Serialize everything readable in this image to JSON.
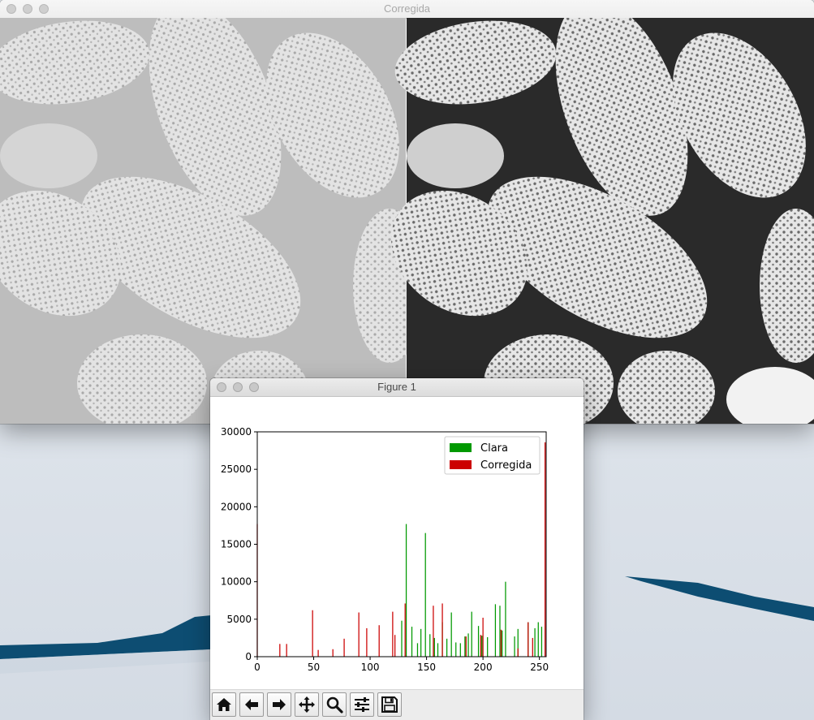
{
  "windows": {
    "corrected": {
      "title": "Corregida"
    },
    "figure": {
      "title": "Figure 1"
    }
  },
  "toolbar": {
    "buttons": [
      {
        "name": "home-button",
        "icon": "home-icon"
      },
      {
        "name": "back-button",
        "icon": "arrow-left-icon"
      },
      {
        "name": "forward-button",
        "icon": "arrow-right-icon"
      },
      {
        "name": "pan-button",
        "icon": "move-icon"
      },
      {
        "name": "zoom-button",
        "icon": "magnifier-icon"
      },
      {
        "name": "configure-subplots-button",
        "icon": "sliders-icon"
      },
      {
        "name": "save-button",
        "icon": "floppy-disk-icon"
      }
    ]
  },
  "chart_data": {
    "type": "bar",
    "title": "",
    "xlabel": "",
    "ylabel": "",
    "xlim": [
      0,
      256
    ],
    "ylim": [
      0,
      30000
    ],
    "x_ticks": [
      0,
      50,
      100,
      150,
      200,
      250
    ],
    "y_ticks": [
      0,
      5000,
      10000,
      15000,
      20000,
      25000,
      30000
    ],
    "legend": {
      "position": "top-right",
      "entries": [
        "Clara",
        "Corregida"
      ]
    },
    "series": [
      {
        "name": "Clara",
        "color": "#009900",
        "points": [
          [
            128,
            4800
          ],
          [
            132,
            17700
          ],
          [
            137,
            4000
          ],
          [
            142,
            1800
          ],
          [
            145,
            3700
          ],
          [
            149,
            16500
          ],
          [
            153,
            3000
          ],
          [
            157,
            2500
          ],
          [
            160,
            1800
          ],
          [
            164,
            4600
          ],
          [
            168,
            2400
          ],
          [
            172,
            5900
          ],
          [
            176,
            1900
          ],
          [
            180,
            1800
          ],
          [
            184,
            2700
          ],
          [
            187,
            3100
          ],
          [
            190,
            6000
          ],
          [
            196,
            4100
          ],
          [
            199,
            2800
          ],
          [
            204,
            2600
          ],
          [
            211,
            7000
          ],
          [
            215,
            6800
          ],
          [
            217,
            3500
          ],
          [
            220,
            10000
          ],
          [
            228,
            2700
          ],
          [
            231,
            3700
          ],
          [
            240,
            4600
          ],
          [
            246,
            3800
          ],
          [
            249,
            4600
          ],
          [
            252,
            4000
          ]
        ]
      },
      {
        "name": "Corregida",
        "color": "#cc0000",
        "points": [
          [
            0,
            17700
          ],
          [
            20,
            1700
          ],
          [
            26,
            1700
          ],
          [
            49,
            6200
          ],
          [
            54,
            900
          ],
          [
            67,
            1000
          ],
          [
            77,
            2400
          ],
          [
            90,
            5900
          ],
          [
            97,
            3800
          ],
          [
            108,
            4200
          ],
          [
            120,
            6000
          ],
          [
            122,
            2900
          ],
          [
            131,
            7100
          ],
          [
            156,
            6800
          ],
          [
            164,
            7100
          ],
          [
            185,
            2700
          ],
          [
            198,
            2900
          ],
          [
            200,
            5200
          ],
          [
            216,
            3600
          ],
          [
            231,
            1100
          ],
          [
            240,
            4600
          ],
          [
            244,
            2500
          ],
          [
            255,
            28600
          ]
        ]
      }
    ]
  }
}
